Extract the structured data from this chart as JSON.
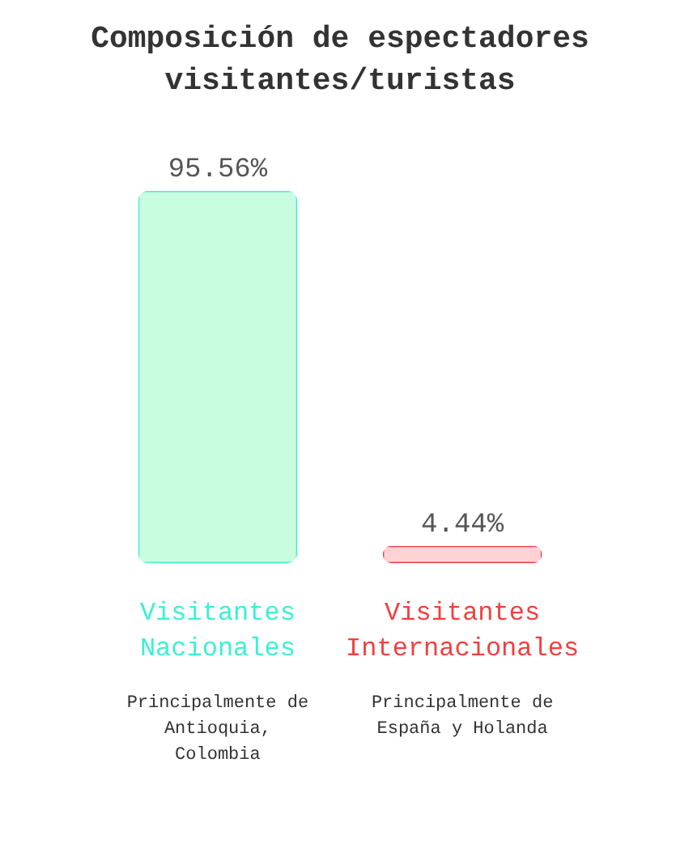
{
  "chart_data": {
    "type": "bar",
    "title": "Composición de espectadores visitantes/turistas",
    "categories": [
      "Visitantes Nacionales",
      "Visitantes Internacionales"
    ],
    "values": [
      95.56,
      4.44
    ],
    "colors": [
      "#c9fde0",
      "#ffd3d3"
    ],
    "value_labels": [
      "95.56%",
      "4.44%"
    ],
    "annotations": [
      "Principalmente de Antioquia, Colombia",
      "Principalmente de España y Holanda"
    ]
  }
}
